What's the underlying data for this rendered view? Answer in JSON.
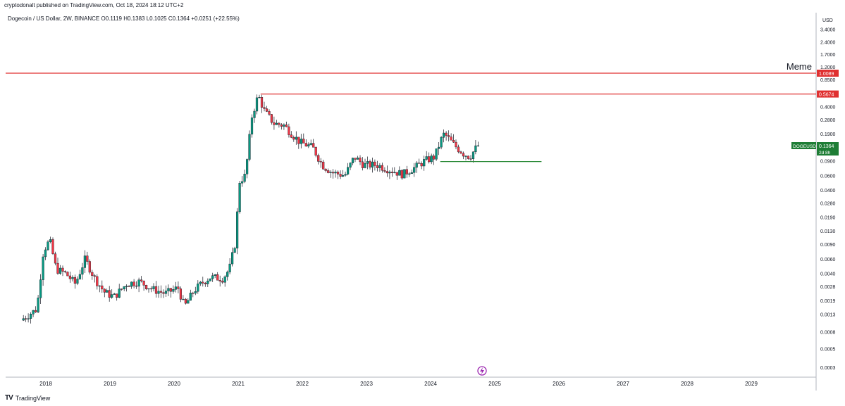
{
  "header": {
    "publish_line": "cryptodonalt published on TradingView.com, Oct 18, 2024 18:12 UTC+2",
    "symbol_line": "Dogecoin / US Dollar, 2W, BINANCE  O0.1119  H0.1383  L0.1025  C0.1364  +0.0251 (+22.55%)"
  },
  "footer": {
    "brand": "TradingView",
    "logo": "TV"
  },
  "colors": {
    "up": "#089981",
    "down": "#f23645",
    "resistance": "#e03030",
    "support": "#2e8b3a",
    "axis_text": "#131722"
  },
  "chart_data": {
    "type": "candlestick",
    "scale": "log",
    "y_axis_unit": "USD",
    "y_ticks": [
      "3.4000",
      "2.4000",
      "1.7000",
      "1.2000",
      "0.8500",
      "0.5674",
      "0.4000",
      "0.2800",
      "0.1900",
      "0.1364",
      "0.0900",
      "0.0600",
      "0.0400",
      "0.0280",
      "0.0190",
      "0.0130",
      "0.0090",
      "0.0060",
      "0.0040",
      "0.0028",
      "0.0019",
      "0.0013",
      "0.0008",
      "0.0005",
      "0.0003"
    ],
    "x_ticks": [
      "2018",
      "2019",
      "2020",
      "2021",
      "2022",
      "2023",
      "2024",
      "2025",
      "2026",
      "2027",
      "2028",
      "2029"
    ],
    "horizontal_lines": [
      {
        "name": "upper-resistance",
        "value": 1.0089,
        "label": "1.0089",
        "annotation": "Meme",
        "color": "#e03030"
      },
      {
        "name": "lower-resistance",
        "value": 0.5674,
        "label": "0.5674",
        "start": 2021.35,
        "color": "#e03030"
      },
      {
        "name": "support",
        "value": 0.088,
        "start": 2024.15,
        "end": 2025.73,
        "color": "#2e8b3a"
      }
    ],
    "last_price": {
      "symbol": "DOGEUSD",
      "value": "0.1364",
      "countdown": "2d 8h"
    },
    "ohlc_points": [
      [
        2017.65,
        0.0011
      ],
      [
        2017.9,
        0.0015
      ],
      [
        2018.0,
        0.0075
      ],
      [
        2018.1,
        0.01
      ],
      [
        2018.2,
        0.0045
      ],
      [
        2018.35,
        0.004
      ],
      [
        2018.5,
        0.003
      ],
      [
        2018.65,
        0.006
      ],
      [
        2018.8,
        0.0035
      ],
      [
        2018.95,
        0.0024
      ],
      [
        2019.1,
        0.0021
      ],
      [
        2019.3,
        0.003
      ],
      [
        2019.5,
        0.0032
      ],
      [
        2019.7,
        0.0026
      ],
      [
        2019.9,
        0.0023
      ],
      [
        2020.1,
        0.0027
      ],
      [
        2020.2,
        0.0016
      ],
      [
        2020.35,
        0.0025
      ],
      [
        2020.5,
        0.0032
      ],
      [
        2020.6,
        0.0036
      ],
      [
        2020.8,
        0.0035
      ],
      [
        2020.9,
        0.0045
      ],
      [
        2021.0,
        0.01
      ],
      [
        2021.05,
        0.05
      ],
      [
        2021.15,
        0.06
      ],
      [
        2021.25,
        0.3
      ],
      [
        2021.35,
        0.55
      ],
      [
        2021.45,
        0.35
      ],
      [
        2021.6,
        0.25
      ],
      [
        2021.75,
        0.24
      ],
      [
        2021.9,
        0.18
      ],
      [
        2022.0,
        0.15
      ],
      [
        2022.2,
        0.13
      ],
      [
        2022.35,
        0.08
      ],
      [
        2022.5,
        0.065
      ],
      [
        2022.7,
        0.06
      ],
      [
        2022.85,
        0.1
      ],
      [
        2023.0,
        0.08
      ],
      [
        2023.2,
        0.08
      ],
      [
        2023.4,
        0.07
      ],
      [
        2023.6,
        0.062
      ],
      [
        2023.8,
        0.075
      ],
      [
        2023.95,
        0.09
      ],
      [
        2024.1,
        0.1
      ],
      [
        2024.2,
        0.16
      ],
      [
        2024.25,
        0.19
      ],
      [
        2024.4,
        0.14
      ],
      [
        2024.55,
        0.11
      ],
      [
        2024.65,
        0.1
      ],
      [
        2024.77,
        0.1364
      ]
    ]
  }
}
